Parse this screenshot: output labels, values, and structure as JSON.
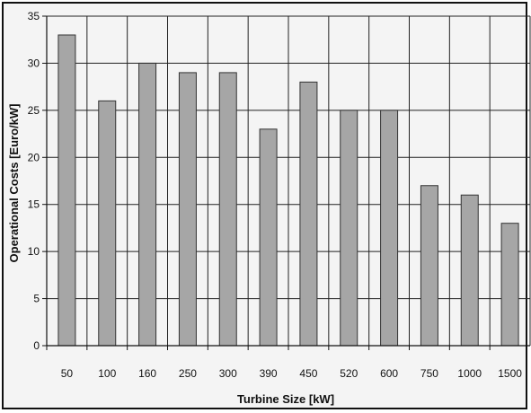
{
  "chart_data": {
    "type": "bar",
    "title": "",
    "xlabel": "Turbine Size [kW]",
    "ylabel": "Operational Costs [Euro/kW]",
    "categories": [
      "50",
      "100",
      "160",
      "250",
      "300",
      "390",
      "450",
      "520",
      "600",
      "750",
      "1000",
      "1500"
    ],
    "values": [
      33,
      26,
      30,
      29,
      29,
      23,
      28,
      25,
      25,
      17,
      16,
      13
    ],
    "ylim": [
      0,
      35
    ],
    "yticks": [
      "0",
      "5",
      "10",
      "15",
      "20",
      "25",
      "30",
      "35"
    ],
    "grid": true,
    "legend": "none",
    "colors": {
      "bar_fill": "#a6a6a6",
      "bar_stroke": "#333333",
      "plot_bg": "#f4f4f4",
      "grid": "#222222"
    }
  }
}
